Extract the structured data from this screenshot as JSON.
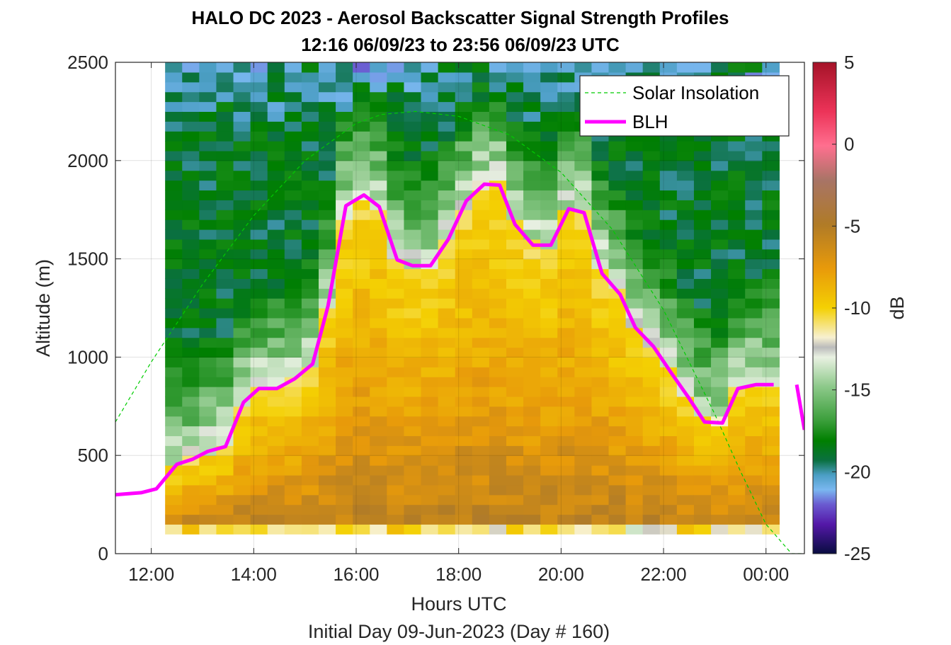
{
  "chart_data": {
    "type": "heatmap",
    "title": "HALO DC 2023 - Aerosol Backscatter Signal Strength Profiles",
    "subtitle": "12:16 06/09/23 to 23:56 06/09/23  UTC",
    "xlabel": "Hours UTC",
    "footnote": "Initial Day 09-Jun-2023 (Day # 160)",
    "ylabel": "Altitude (m)",
    "colorbar_label": "dB",
    "xlim": [
      11.3,
      24.75
    ],
    "ylim": [
      0,
      2500
    ],
    "x_ticks": [
      12,
      14,
      16,
      18,
      20,
      22,
      24
    ],
    "x_tick_labels": [
      "12:00",
      "14:00",
      "16:00",
      "18:00",
      "20:00",
      "22:00",
      "00:00"
    ],
    "y_ticks": [
      0,
      500,
      1000,
      1500,
      2000,
      2500
    ],
    "y_tick_labels": [
      "0",
      "500",
      "1000",
      "1500",
      "2000",
      "2500"
    ],
    "colorbar_range": [
      -25,
      5
    ],
    "colorbar_ticks": [
      5,
      0,
      -5,
      -10,
      -15,
      -20,
      -25
    ],
    "colorbar_tick_labels": [
      "5",
      "0",
      "-5",
      "-10",
      "-15",
      "-20",
      "-25"
    ],
    "grid": true,
    "legend_position": "top-right",
    "heatmap_extent": {
      "x_start": 12.27,
      "x_end": 24.0,
      "y_start": 100,
      "y_end": 2500,
      "time_step_hours": 0.333,
      "altitude_step_m": 50
    },
    "series": [
      {
        "name": "Solar Insolation",
        "style": "dashed",
        "color": "#00cc00",
        "peak": {
          "x": 17.15,
          "y": 2250
        },
        "x": [
          11.3,
          12.0,
          13.0,
          14.0,
          15.0,
          16.0,
          16.5,
          17.15,
          18.0,
          19.0,
          20.0,
          21.0,
          22.0,
          23.0,
          23.5,
          24.0,
          24.5,
          24.75
        ],
        "y": [
          670,
          975,
          1370,
          1720,
          2000,
          2190,
          2235,
          2250,
          2225,
          2130,
          1940,
          1650,
          1240,
          710,
          420,
          150,
          0,
          0
        ]
      },
      {
        "name": "BLH",
        "style": "solid",
        "color": "#ff00ff",
        "x": [
          11.3,
          11.8,
          12.1,
          12.5,
          12.8,
          13.1,
          13.45,
          13.8,
          14.1,
          14.45,
          14.8,
          15.15,
          15.45,
          15.8,
          16.15,
          16.45,
          16.8,
          17.1,
          17.45,
          17.8,
          18.15,
          18.5,
          18.8,
          19.1,
          19.45,
          19.8,
          20.15,
          20.45,
          20.8,
          21.15,
          21.45,
          21.8,
          22.15,
          22.5,
          22.8,
          23.15,
          23.45,
          23.8,
          24.15
        ],
        "y": [
          300,
          310,
          330,
          455,
          480,
          520,
          545,
          770,
          840,
          840,
          890,
          965,
          1260,
          1770,
          1825,
          1765,
          1495,
          1465,
          1465,
          1600,
          1795,
          1880,
          1875,
          1675,
          1570,
          1570,
          1755,
          1735,
          1425,
          1320,
          1150,
          1055,
          920,
          790,
          670,
          665,
          840,
          860,
          860
        ],
        "x2": [
          24.6,
          24.75
        ],
        "y2": [
          860,
          630
        ]
      }
    ]
  }
}
